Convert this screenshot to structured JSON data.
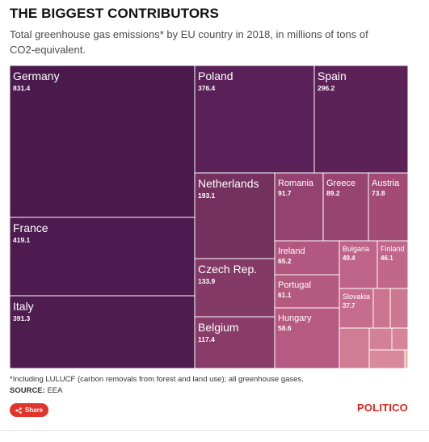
{
  "header": {
    "title": "THE BIGGEST CONTRIBUTORS",
    "subtitle": "Total greenhouse gas emissions* by EU country in 2018, in millions of tons of CO2-equivalent."
  },
  "chart_data": {
    "type": "treemap",
    "title": "THE BIGGEST CONTRIBUTORS",
    "subtitle": "Total greenhouse gas emissions* by EU country in 2018, in millions of tons of CO2-equivalent.",
    "unit": "millions of tons of CO2-equivalent",
    "items": [
      {
        "name": "Germany",
        "value": "831.4",
        "color": "#4a1a4d"
      },
      {
        "name": "Poland",
        "value": "376.4",
        "color": "#5a2159"
      },
      {
        "name": "Spain",
        "value": "296.2",
        "color": "#5c2258"
      },
      {
        "name": "France",
        "value": "419.1",
        "color": "#4d1b4f"
      },
      {
        "name": "Italy",
        "value": "391.3",
        "color": "#4f1c50"
      },
      {
        "name": "Netherlands",
        "value": "193.1",
        "color": "#74305f"
      },
      {
        "name": "Romania",
        "value": "91.7",
        "color": "#94426f"
      },
      {
        "name": "Greece",
        "value": "89.2",
        "color": "#974470"
      },
      {
        "name": "Austria",
        "value": "73.8",
        "color": "#a34b75"
      },
      {
        "name": "Czech Rep.",
        "value": "133.9",
        "color": "#843a67"
      },
      {
        "name": "Belgium",
        "value": "117.4",
        "color": "#893c69"
      },
      {
        "name": "Ireland",
        "value": "65.2",
        "color": "#b2577f"
      },
      {
        "name": "Portugal",
        "value": "61.1",
        "color": "#b45980"
      },
      {
        "name": "Hungary",
        "value": "58.6",
        "color": "#b75a82"
      },
      {
        "name": "Bulgaria",
        "value": "49.4",
        "color": "#be6488"
      },
      {
        "name": "Finland",
        "value": "46.1",
        "color": "#c0678a"
      },
      {
        "name": "Slovakia",
        "value": "37.7",
        "color": "#c66c8c"
      },
      {
        "name": "",
        "value": "",
        "color": "#ca7490"
      },
      {
        "name": "",
        "value": "",
        "color": "#cd7892"
      },
      {
        "name": "",
        "value": "",
        "color": "#d17c95"
      },
      {
        "name": "",
        "value": "",
        "color": "#d38099"
      },
      {
        "name": "",
        "value": "",
        "color": "#d5849a"
      },
      {
        "name": "",
        "value": "",
        "color": "#d88a9c"
      },
      {
        "name": "",
        "value": "",
        "color": "#e8b3a6"
      },
      {
        "name": "",
        "value": "",
        "color": "#eab8a8"
      },
      {
        "name": "",
        "value": "",
        "color": "#ecbcaa"
      }
    ]
  },
  "footer": {
    "footnote": "*Including LULUCF (carbon removals from forest and land use); all greenhouse gases.",
    "source_label": "SOURCE:",
    "source_value": "EEA",
    "share_label": "Share",
    "brand": "POLITICO"
  },
  "icons": {
    "share": "share-icon"
  }
}
